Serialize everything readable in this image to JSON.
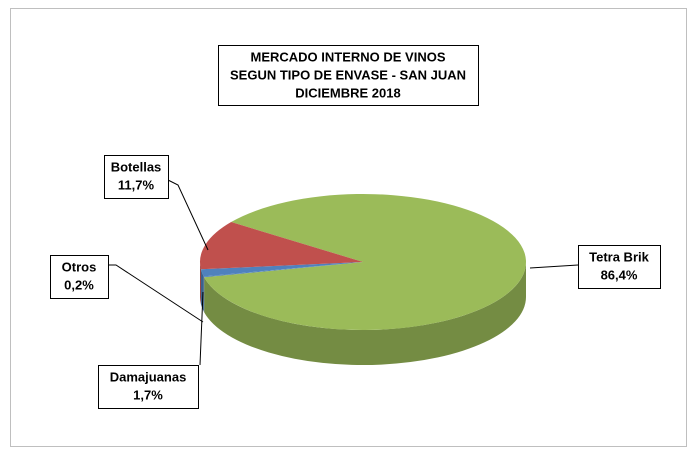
{
  "chart_data": {
    "type": "pie",
    "title": [
      "MERCADO INTERNO DE VINOS",
      "SEGUN TIPO DE ENVASE - SAN JUAN",
      "DICIEMBRE 2018"
    ],
    "categories": [
      "Tetra Brik",
      "Otros",
      "Damajuanas",
      "Botellas"
    ],
    "values": [
      86.4,
      0.2,
      1.7,
      11.7
    ],
    "value_labels": [
      "86,4%",
      "0,2%",
      "1,7%",
      "11,7%"
    ],
    "colors": [
      "#9bbb59",
      "#4f81bd",
      "#4f81bd",
      "#c0504d"
    ]
  }
}
